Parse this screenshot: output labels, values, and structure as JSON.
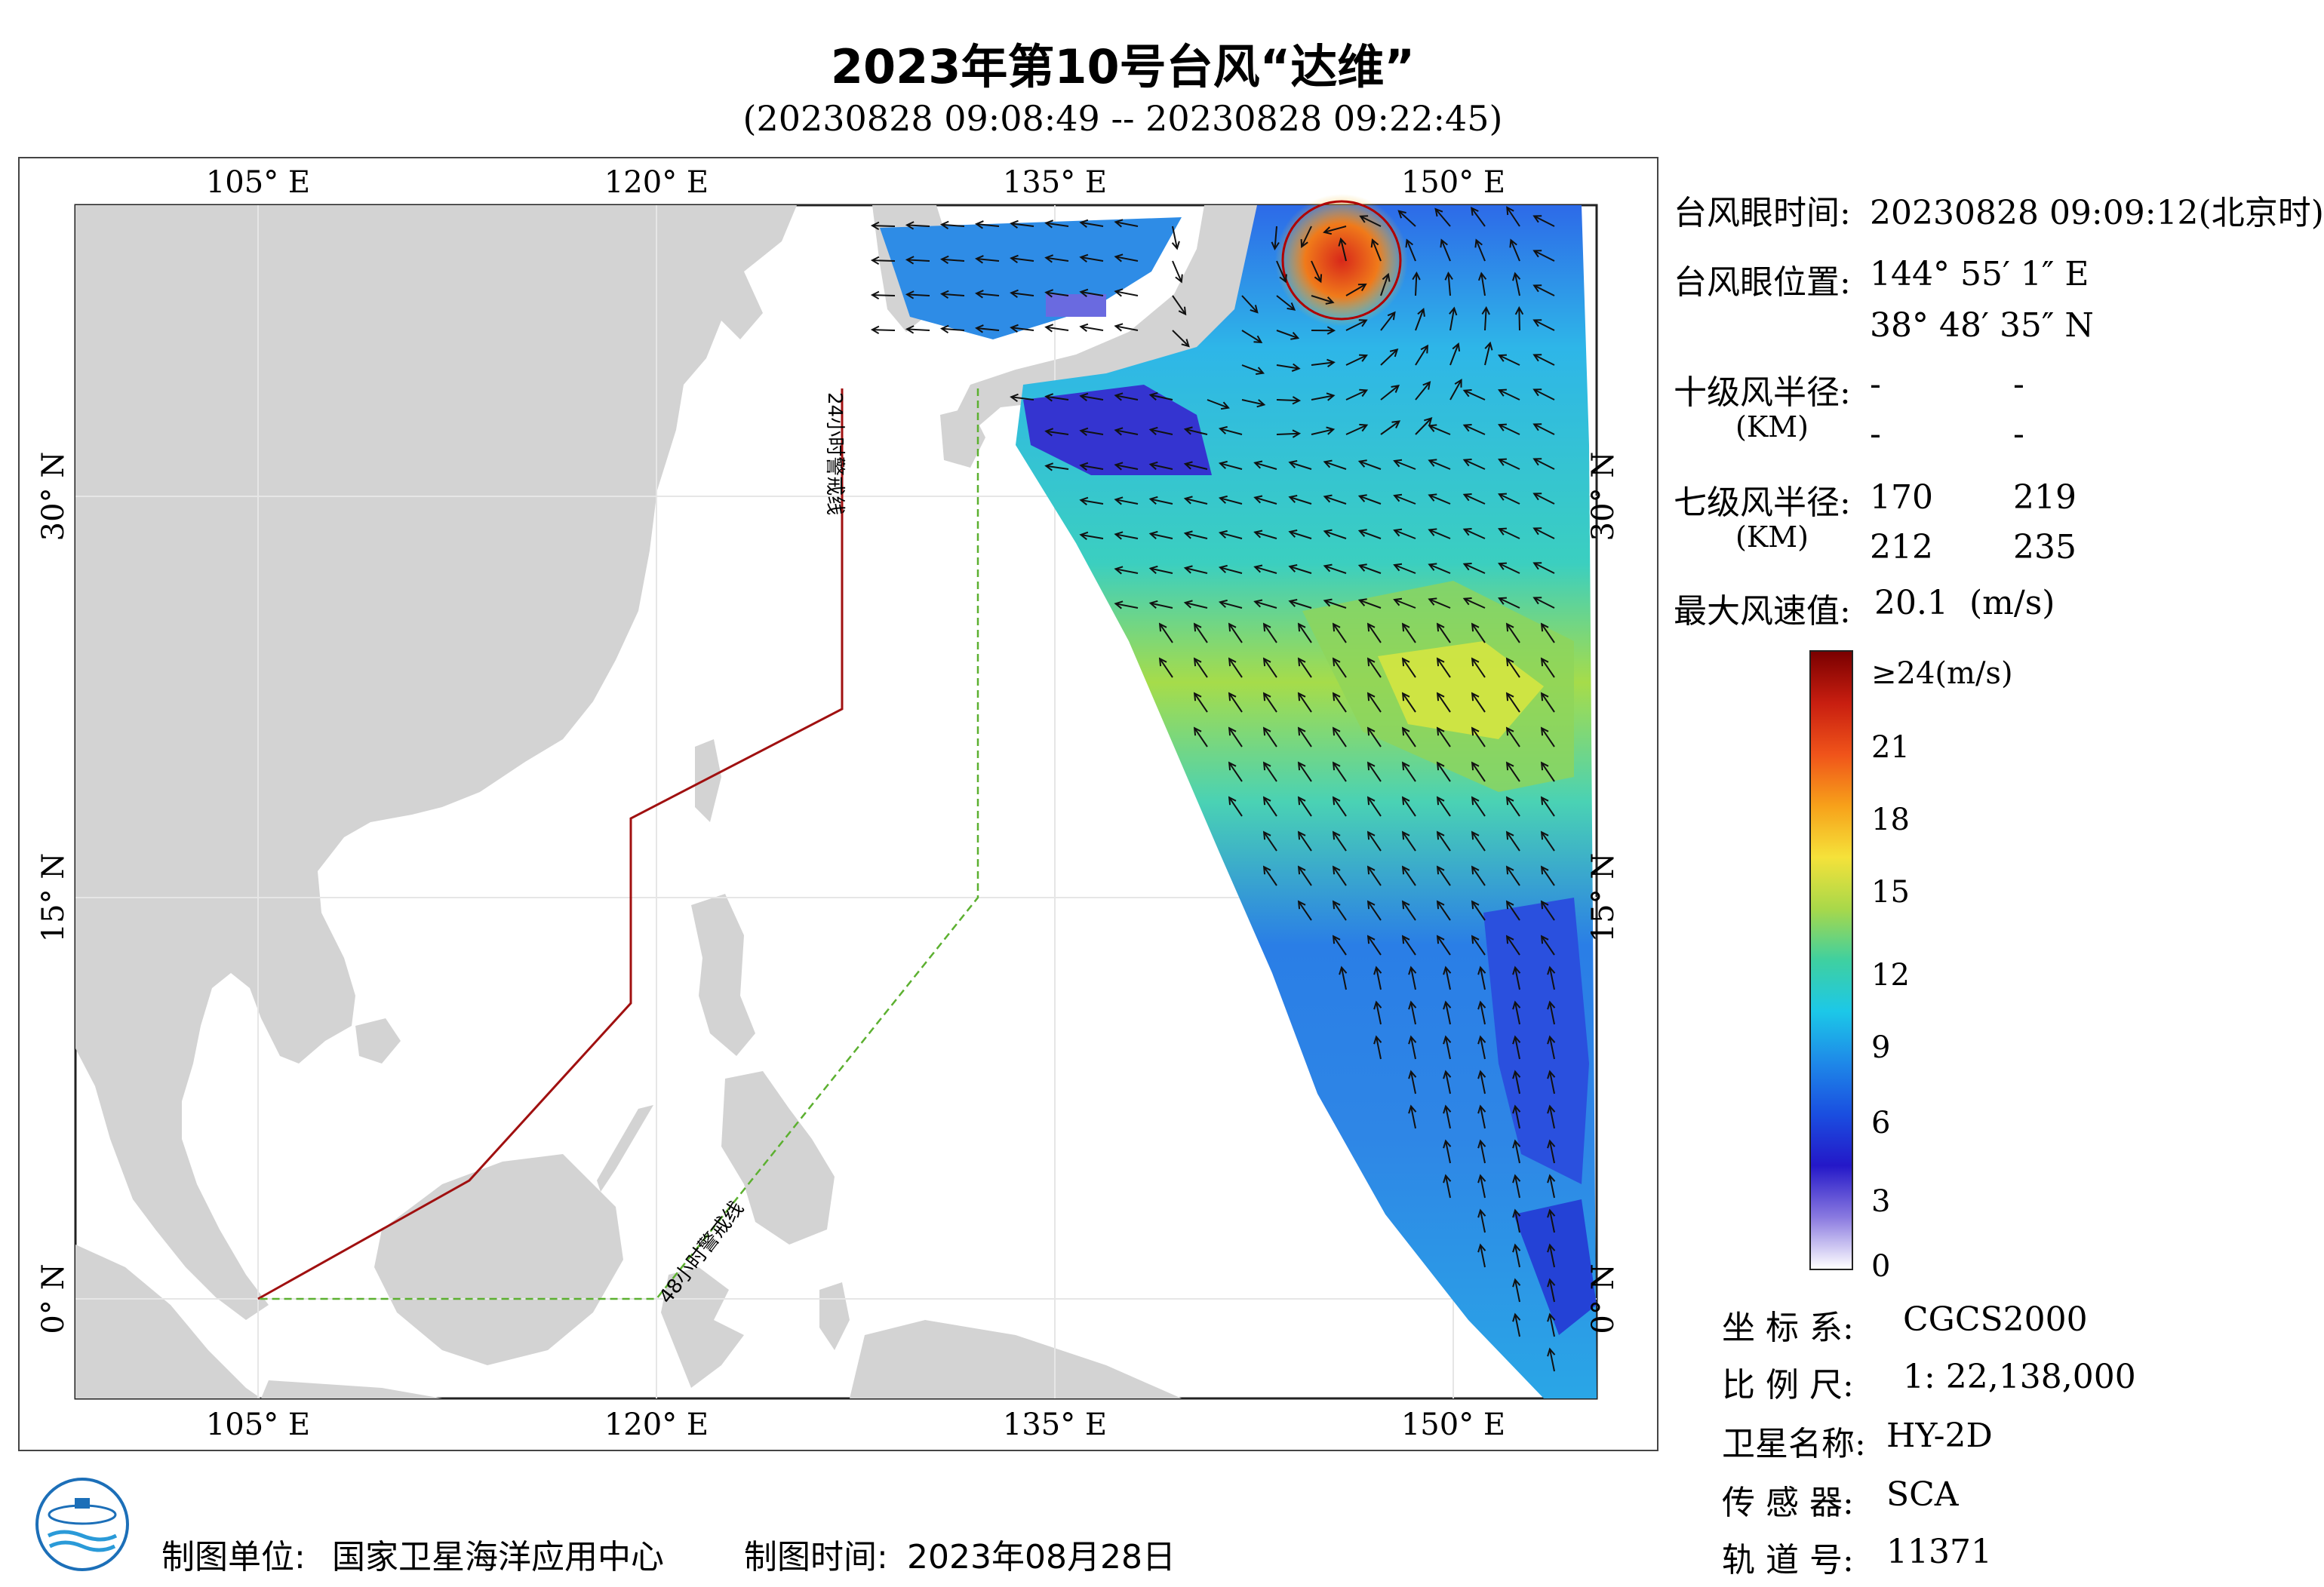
{
  "title": "2023年第10号台风“达维”",
  "subtitle": "(20230828 09:08:49 -- 20230828 09:22:45)",
  "map": {
    "lon_labels": [
      "105° E",
      "120° E",
      "135° E",
      "150° E"
    ],
    "lat_labels": [
      "30° N",
      "15° N",
      "0° N"
    ],
    "warning_24h": "24小时警戒线",
    "warning_48h": "48小时警戒线"
  },
  "info": {
    "eye_time_label": "台风眼时间:",
    "eye_time_value": "20230828 09:09:12(北京时)",
    "eye_pos_label": "台风眼位置:",
    "eye_lon": "144° 55′ 1″ E",
    "eye_lat": "38° 48′ 35″ N",
    "r10_label": "十级风半径:",
    "r10_unit": "(KM)",
    "r10_values": [
      "-",
      "-",
      "-",
      "-"
    ],
    "r7_label": "七级风半径:",
    "r7_unit": "(KM)",
    "r7_values": [
      "170",
      "219",
      "212",
      "235"
    ],
    "max_wind_label": "最大风速值:",
    "max_wind_value": "20.1",
    "max_wind_unit": "(m/s)"
  },
  "colorbar": {
    "labels": [
      "≥24(m/s)",
      "21",
      "18",
      "15",
      "12",
      "9",
      "6",
      "3",
      "0"
    ],
    "colors": [
      "#7a0000",
      "#c81e10",
      "#f0541a",
      "#f7a11a",
      "#f5e23a",
      "#a8d84a",
      "#3fd0a0",
      "#1cc8e8",
      "#1e88e8",
      "#1a4ee0",
      "#2418c8",
      "#8a7ae0",
      "#ffffff"
    ]
  },
  "meta": {
    "crs_label": "坐 标 系:",
    "crs_value": "CGCS2000",
    "scale_label": "比 例 尺:",
    "scale_value": "1: 22,138,000",
    "sat_label": "卫星名称:",
    "sat_value": "HY-2D",
    "sensor_label": "传 感 器:",
    "sensor_value": "SCA",
    "orbit_label": "轨 道 号:",
    "orbit_value": "11371"
  },
  "footer": {
    "unit_label": "制图单位:",
    "unit_value": "国家卫星海洋应用中心",
    "time_label": "制图时间:",
    "time_value": "2023年08月28日"
  }
}
